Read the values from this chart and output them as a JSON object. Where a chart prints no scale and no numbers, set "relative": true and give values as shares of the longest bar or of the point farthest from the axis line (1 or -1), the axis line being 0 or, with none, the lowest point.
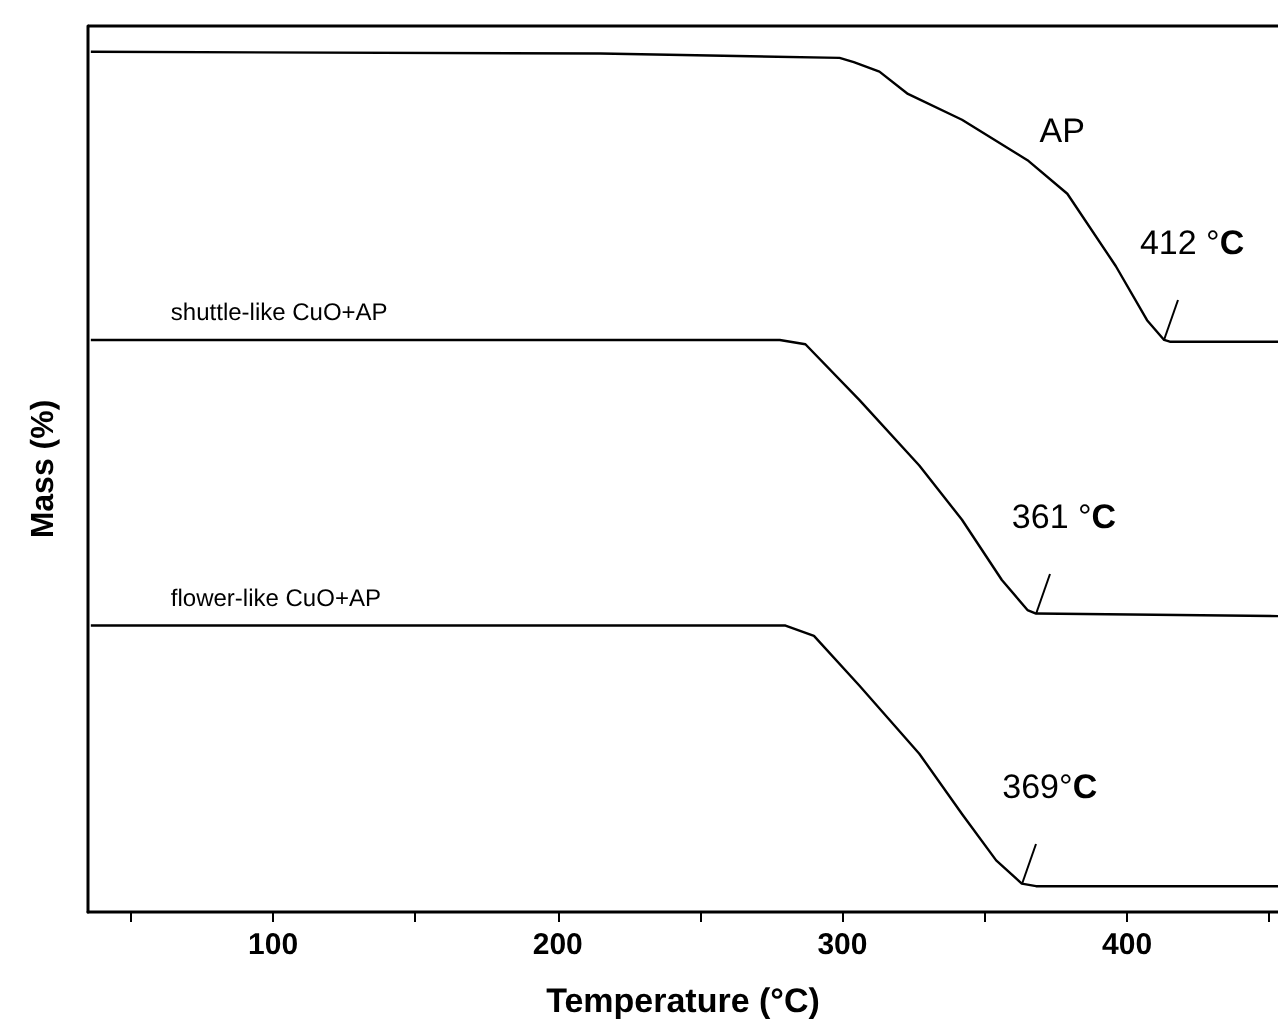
{
  "chart_data": {
    "type": "line",
    "xlabel": "Temperature (°C)",
    "ylabel": "Mass (%)",
    "relative": true,
    "tick_labels": "x",
    "marker": "none",
    "line_style": "solid",
    "legend": false,
    "grid": false,
    "xlim": [
      35,
      453
    ],
    "xticks": [
      {
        "value": 50,
        "label": null
      },
      100,
      {
        "value": 150,
        "label": null
      },
      200,
      {
        "value": 250,
        "label": null
      },
      300,
      {
        "value": 350,
        "label": null
      },
      400,
      {
        "value": 450,
        "label": null
      }
    ],
    "series": [
      {
        "name": "AP",
        "color": "#000000",
        "x": [
          36,
          215,
          299,
          304,
          313,
          323,
          342,
          365,
          379,
          396,
          407,
          413,
          415,
          453
        ],
        "values": [
          1.0,
          0.998,
          0.993,
          0.988,
          0.977,
          0.951,
          0.921,
          0.874,
          0.835,
          0.751,
          0.688,
          0.665,
          0.663,
          0.663
        ]
      },
      {
        "name": "shuttle-like CuO+AP",
        "color": "#000000",
        "x": [
          36,
          278,
          287,
          306,
          327,
          342,
          356,
          365,
          368,
          453
        ],
        "values": [
          0.665,
          0.665,
          0.66,
          0.595,
          0.519,
          0.456,
          0.386,
          0.351,
          0.347,
          0.344
        ]
      },
      {
        "name": "flower-like CuO+AP",
        "color": "#000000",
        "x": [
          36,
          280,
          290,
          306,
          327,
          342,
          354,
          363,
          368,
          453
        ],
        "values": [
          0.333,
          0.333,
          0.321,
          0.263,
          0.184,
          0.114,
          0.06,
          0.033,
          0.03,
          0.03
        ]
      }
    ],
    "annotations": [
      "412 °C",
      "361 °C",
      "369°C"
    ]
  }
}
